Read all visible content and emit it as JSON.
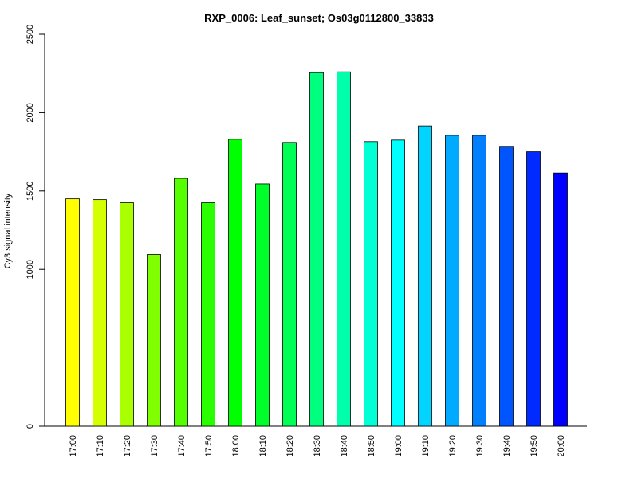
{
  "chart_data": {
    "type": "bar",
    "title": "RXP_0006: Leaf_sunset; Os03g0112800_33833",
    "xlabel": "",
    "ylabel": "Cy3 signal intensity",
    "ylim": [
      0,
      2500
    ],
    "yticks": [
      0,
      1000,
      1500,
      2000,
      2500
    ],
    "grid": false,
    "categories": [
      "17:00",
      "17:10",
      "17:20",
      "17:30",
      "17:40",
      "17:50",
      "18:00",
      "18:10",
      "18:20",
      "18:30",
      "18:40",
      "18:50",
      "19:00",
      "19:10",
      "19:20",
      "19:30",
      "19:40",
      "19:50",
      "20:00"
    ],
    "values": [
      1450,
      1445,
      1425,
      1095,
      1580,
      1425,
      1830,
      1545,
      1810,
      2255,
      2260,
      1815,
      1825,
      1915,
      1855,
      1855,
      1785,
      1750,
      1615
    ],
    "colors": [
      "#FFFF00",
      "#D4FF00",
      "#AAFF00",
      "#7FFF00",
      "#55FF00",
      "#2AFF00",
      "#00FF00",
      "#00FF2A",
      "#00FF55",
      "#00FF7F",
      "#00FFAA",
      "#00FFD4",
      "#00FFFF",
      "#00D4FF",
      "#00AAFF",
      "#007FFF",
      "#0055FF",
      "#002AFF",
      "#0000FF"
    ]
  }
}
